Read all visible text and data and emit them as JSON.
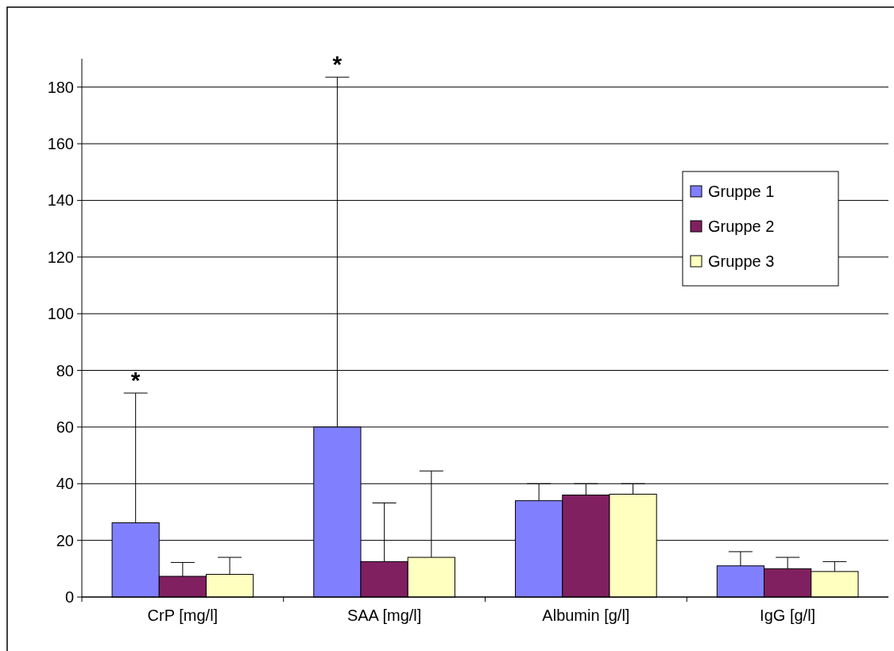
{
  "chart_data": {
    "type": "bar",
    "categories": [
      "CrP [mg/l]",
      "SAA [mg/l]",
      "Albumin [g/l]",
      "IgG [g/l]"
    ],
    "series": [
      {
        "name": "Gruppe 1",
        "color": "#8080ff",
        "values": [
          26.2,
          60,
          34,
          11
        ],
        "errors": [
          [
            26.2,
            72
          ],
          [
            60,
            183.5
          ],
          [
            34,
            40
          ],
          [
            11,
            16
          ]
        ]
      },
      {
        "name": "Gruppe 2",
        "color": "#802060",
        "values": [
          7.3,
          12.5,
          36,
          10
        ],
        "errors": [
          [
            7.3,
            12.2
          ],
          [
            12.5,
            33.2
          ],
          [
            36,
            40
          ],
          [
            10,
            14
          ]
        ]
      },
      {
        "name": "Gruppe 3",
        "color": "#ffffc0",
        "values": [
          8,
          14,
          36.3,
          9
        ],
        "errors": [
          [
            8,
            14
          ],
          [
            14,
            44.5
          ],
          [
            36.3,
            40
          ],
          [
            9,
            12.5
          ]
        ]
      }
    ],
    "ylim": [
      0,
      190
    ],
    "yticks": [
      0,
      20,
      40,
      60,
      80,
      100,
      120,
      140,
      160,
      180
    ],
    "grid": "y",
    "legend": "right",
    "annotations": [
      "*",
      "*"
    ]
  }
}
